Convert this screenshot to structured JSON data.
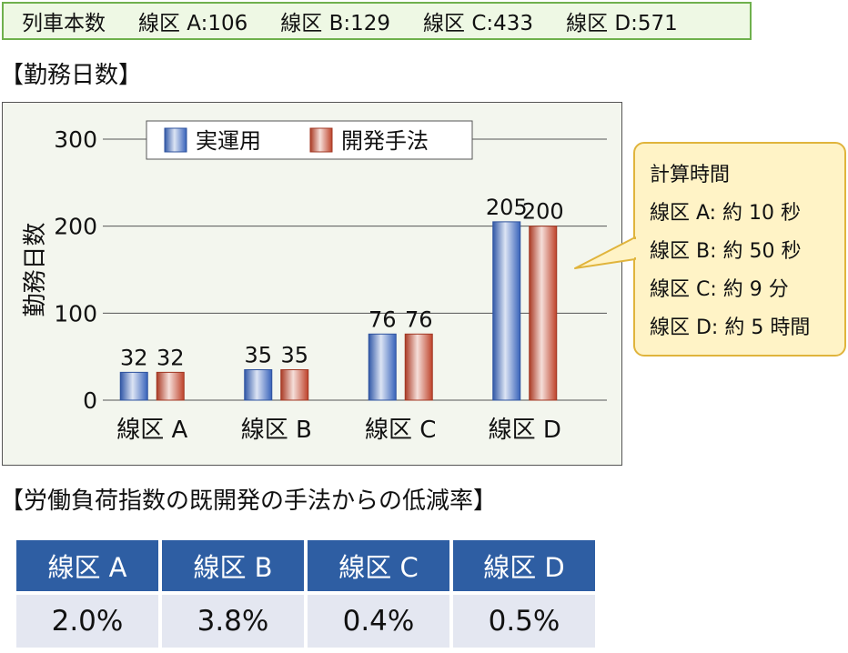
{
  "summary": {
    "label": "列車本数",
    "items": [
      "線区 A:106",
      "線区 B:129",
      "線区 C:433",
      "線区 D:571"
    ]
  },
  "chart_heading": "【勤務日数】",
  "chart_data": {
    "type": "bar",
    "title": "",
    "xlabel": "",
    "ylabel": "勤務日数",
    "categories": [
      "線区 A",
      "線区 B",
      "線区 C",
      "線区 D"
    ],
    "series": [
      {
        "name": "実運用",
        "values": [
          32,
          35,
          76,
          205
        ],
        "color": "#3a67c4"
      },
      {
        "name": "開発手法",
        "values": [
          32,
          35,
          76,
          200
        ],
        "color": "#c8452c"
      }
    ],
    "ylim": [
      0,
      300
    ],
    "yticks": [
      0,
      100,
      200,
      300
    ],
    "grid": true,
    "legend_position": "top-center"
  },
  "callout": {
    "title": "計算時間",
    "lines": [
      "線区 A: 約 10 秒",
      "線区 B: 約 50 秒",
      "線区 C: 約 9 分",
      "線区 D: 約 5 時間"
    ]
  },
  "reduction_heading": "【労働負荷指数の既開発の手法からの低減率】",
  "reduction_table": {
    "headers": [
      "線区 A",
      "線区 B",
      "線区 C",
      "線区 D"
    ],
    "values": [
      "2.0%",
      "3.8%",
      "0.4%",
      "0.5%"
    ]
  },
  "colors": {
    "summary_bg": "#eef8e4",
    "summary_border": "#6fb04d",
    "chart_bg": "#f3f6ee",
    "callout_bg": "#fff3c6",
    "callout_border": "#e0b43c",
    "table_header": "#2e5ea3",
    "table_cell": "#e4e7f1"
  }
}
